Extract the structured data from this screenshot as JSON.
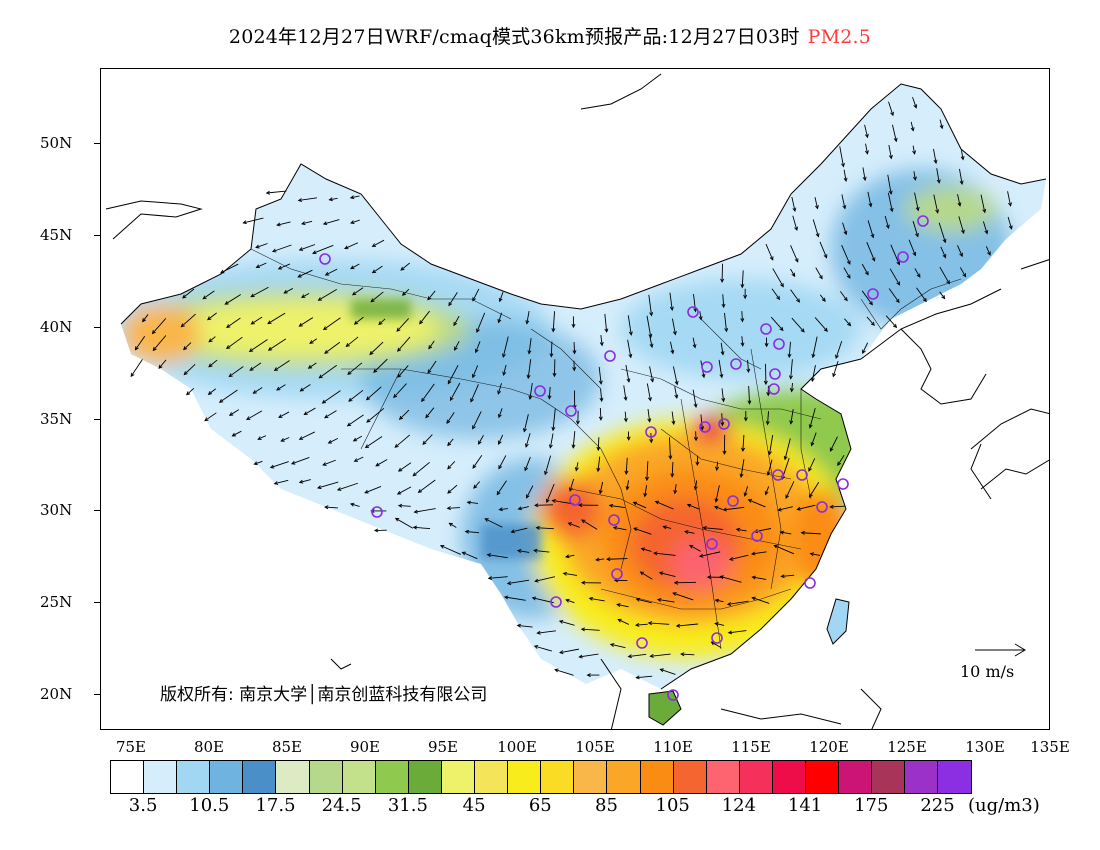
{
  "title": {
    "main": "2024年12月27日WRF/cmaq模式36km预报产品:12月27日03时",
    "variable": "PM2.5",
    "variable_color": "#ff3b3b"
  },
  "map": {
    "lat_labels": [
      "50N",
      "45N",
      "40N",
      "35N",
      "30N",
      "25N",
      "20N"
    ],
    "lon_labels": [
      "75E",
      "80E",
      "85E",
      "90E",
      "95E",
      "100E",
      "105E",
      "110E",
      "115E",
      "120E",
      "125E",
      "130E",
      "135E"
    ],
    "copyright": "版权所有: 南京大学│南京创蓝科技有限公司",
    "wind_scale_label": "10 m/s",
    "station_marker": "purple-circle"
  },
  "colorbar": {
    "colors": [
      "#ffffff",
      "#d6eefc",
      "#a1d7f3",
      "#6fb4e0",
      "#4a8fc8",
      "#dcebc3",
      "#b6d88a",
      "#c2e18a",
      "#8fc94e",
      "#6aab3a",
      "#eef26a",
      "#f3e459",
      "#f8ec1d",
      "#fbdc25",
      "#f9b649",
      "#faa728",
      "#fb8c13",
      "#f4652f",
      "#fd6470",
      "#f5305b",
      "#ee0c49",
      "#ff0000",
      "#cc1474",
      "#a8345a",
      "#9c31c8",
      "#8c2fe2"
    ],
    "labels": [
      "3.5",
      "10.5",
      "17.5",
      "24.5",
      "31.5",
      "45",
      "65",
      "85",
      "105",
      "124",
      "141",
      "175",
      "225"
    ],
    "unit": "(ug/m3)"
  }
}
